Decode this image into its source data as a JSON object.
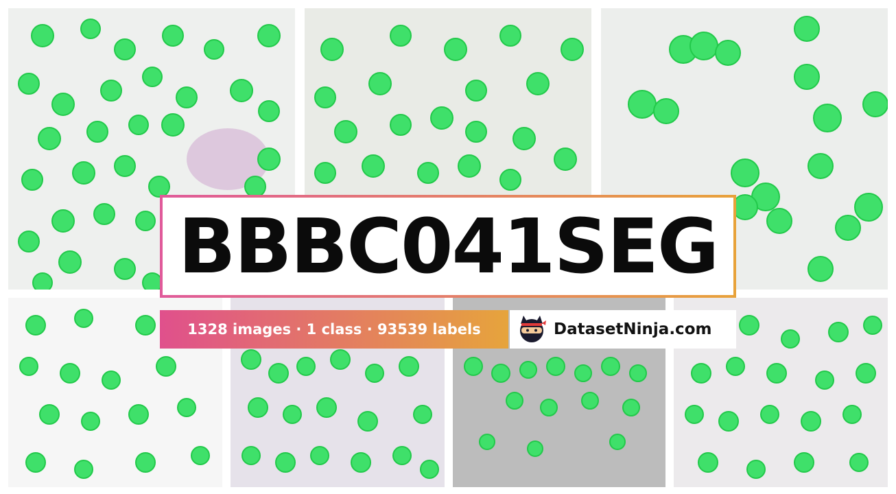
{
  "title": "BBBC041SEG",
  "stats": "1328 images · 1 class · 93539 labels",
  "brand": {
    "name": "DatasetNinja.com",
    "logo_icon": "ninja-mascot-icon"
  },
  "colors": {
    "cell_fill": "#3fe06a",
    "cell_outline": "#22c94a",
    "gradient_start": "#e0508c",
    "gradient_end": "#e6a43c",
    "title_text": "#0b0b0b"
  }
}
